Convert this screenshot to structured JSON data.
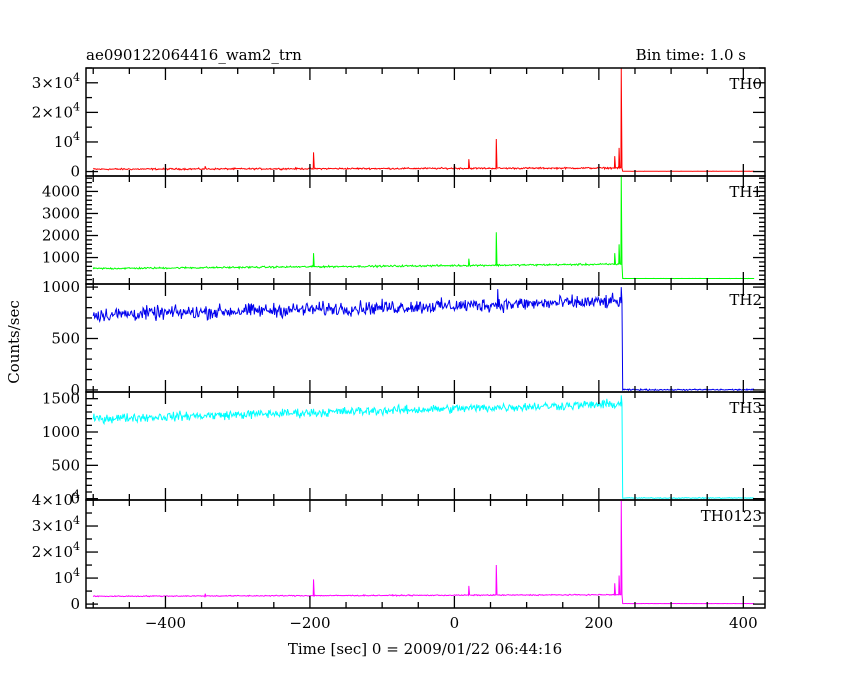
{
  "header": {
    "title": "ae090122064416_wam2_trn",
    "bin_time": "Bin time: 1.0 s"
  },
  "chart_data": {
    "type": "line",
    "xlabel": "Time [sec] 0 = 2009/01/22 06:44:16",
    "ylabel": "Counts/sec",
    "xlim": [
      -510,
      430
    ],
    "x_ticks": [
      -400,
      -200,
      0,
      200,
      400
    ],
    "x_tick_labels": [
      "−400",
      "−200",
      "0",
      "200",
      "400"
    ],
    "x_start": -500,
    "burst_time": 232,
    "x_end": 415,
    "panels": [
      {
        "name": "TH0",
        "color": "#ff0000",
        "ylim": [
          -1500,
          35000
        ],
        "y_ticks": [
          0,
          10000,
          20000,
          30000
        ],
        "y_tick_labels": [
          {
            "mant": "0",
            "exp": ""
          },
          {
            "mant": "10",
            "exp": "4"
          },
          {
            "mant": "2×10",
            "exp": "4"
          },
          {
            "mant": "3×10",
            "exp": "4"
          }
        ],
        "baseline_start": 800,
        "baseline_end": 1200,
        "noise": 200,
        "post_burst": 100,
        "spikes": [
          {
            "x": -345,
            "y": 1800
          },
          {
            "x": -195,
            "y": 6500
          },
          {
            "x": 0,
            "y": 2000
          },
          {
            "x": 20,
            "y": 4200
          },
          {
            "x": 58,
            "y": 11000
          },
          {
            "x": 222,
            "y": 5200
          },
          {
            "x": 228,
            "y": 8000
          },
          {
            "x": 231,
            "y": 35000
          }
        ]
      },
      {
        "name": "TH1",
        "color": "#00ff00",
        "ylim": [
          -200,
          4700
        ],
        "y_ticks": [
          1000,
          2000,
          3000,
          4000
        ],
        "y_tick_labels": [
          {
            "mant": "1000",
            "exp": ""
          },
          {
            "mant": "2000",
            "exp": ""
          },
          {
            "mant": "3000",
            "exp": ""
          },
          {
            "mant": "4000",
            "exp": ""
          }
        ],
        "baseline_start": 500,
        "baseline_end": 700,
        "noise": 30,
        "post_burst": 50,
        "spikes": [
          {
            "x": -195,
            "y": 1200
          },
          {
            "x": 20,
            "y": 950
          },
          {
            "x": 58,
            "y": 2150
          },
          {
            "x": 222,
            "y": 1200
          },
          {
            "x": 228,
            "y": 1600
          },
          {
            "x": 231,
            "y": 4700
          }
        ]
      },
      {
        "name": "TH2",
        "color": "#0000ee",
        "ylim": [
          -20,
          1030
        ],
        "y_ticks": [
          0,
          500,
          1000
        ],
        "y_tick_labels": [
          {
            "mant": "0",
            "exp": ""
          },
          {
            "mant": "500",
            "exp": ""
          },
          {
            "mant": "1000",
            "exp": ""
          }
        ],
        "baseline_start": 730,
        "baseline_end": 860,
        "noise": 50,
        "post_burst": 2,
        "spikes": [
          {
            "x": 60,
            "y": 980
          },
          {
            "x": 231,
            "y": 1000
          }
        ]
      },
      {
        "name": "TH3",
        "color": "#00ffff",
        "ylim": [
          -20,
          1600
        ],
        "y_ticks": [
          0,
          500,
          1000,
          1500
        ],
        "y_tick_labels": [
          {
            "mant": "0",
            "exp": ""
          },
          {
            "mant": "500",
            "exp": ""
          },
          {
            "mant": "1000",
            "exp": ""
          },
          {
            "mant": "1500",
            "exp": ""
          }
        ],
        "baseline_start": 1200,
        "baseline_end": 1420,
        "noise": 50,
        "post_burst": 10,
        "spikes": [
          {
            "x": 231,
            "y": 1550
          }
        ]
      },
      {
        "name": "TH0123",
        "color": "#ff00ff",
        "ylim": [
          -1500,
          40000
        ],
        "y_ticks": [
          0,
          10000,
          20000,
          30000,
          40000
        ],
        "y_tick_labels": [
          {
            "mant": "0",
            "exp": ""
          },
          {
            "mant": "10",
            "exp": "4"
          },
          {
            "mant": "2×10",
            "exp": "4"
          },
          {
            "mant": "3×10",
            "exp": "4"
          },
          {
            "mant": "4×10",
            "exp": "4"
          }
        ],
        "baseline_start": 3000,
        "baseline_end": 3600,
        "noise": 150,
        "post_burst": 200,
        "spikes": [
          {
            "x": -345,
            "y": 4000
          },
          {
            "x": -195,
            "y": 9500
          },
          {
            "x": 20,
            "y": 7000
          },
          {
            "x": 58,
            "y": 15000
          },
          {
            "x": 222,
            "y": 8000
          },
          {
            "x": 228,
            "y": 11000
          },
          {
            "x": 231,
            "y": 40000
          }
        ]
      }
    ]
  }
}
